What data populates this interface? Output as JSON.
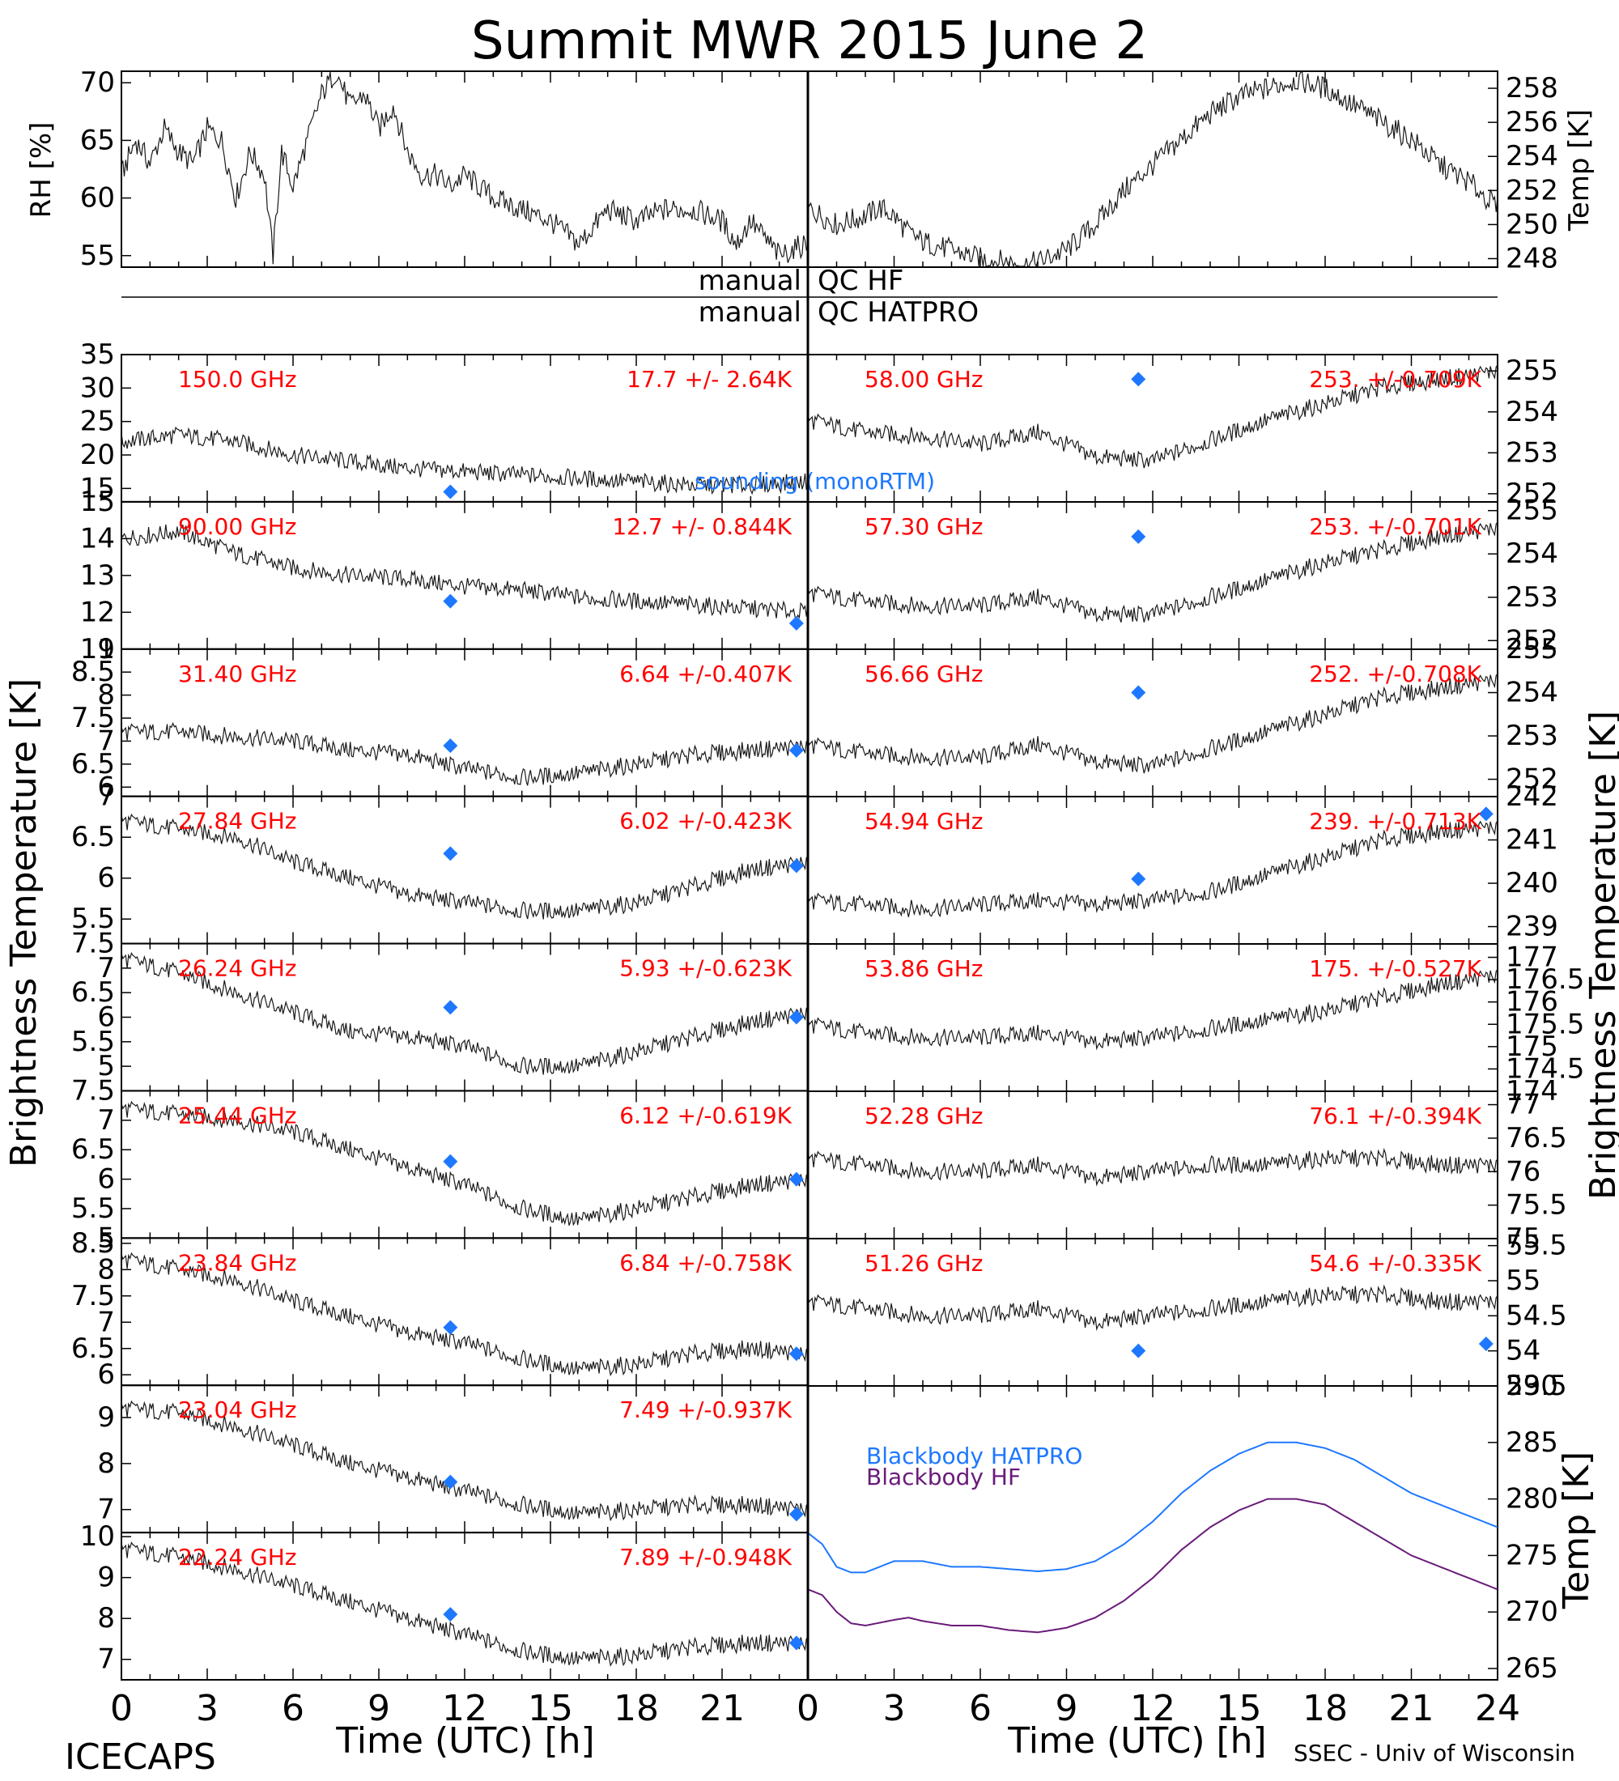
{
  "title": "Summit MWR 2015 June  2",
  "footer_left": "ICECAPS",
  "footer_right": "SSEC - Univ of Wisconsin",
  "x_axis_label": "Time (UTC) [h]",
  "x_ticks": [
    "0",
    "3",
    "6",
    "9",
    "12",
    "15",
    "18",
    "21"
  ],
  "x_ticks_right": [
    "0",
    "3",
    "6",
    "9",
    "12",
    "15",
    "18",
    "21",
    "24"
  ],
  "left_axis_label": "Brightness Temperature [K]",
  "right_axis_label": "Brightness Temperature [K]",
  "qc_labels": {
    "hf_left": "manual",
    "hf_right": "QC HF",
    "hatpro_left": "manual",
    "hatpro_right": "QC HATPRO"
  },
  "colors": {
    "label_red": "#ff0000",
    "sounding_blue": "#1e78ff",
    "hatpro_line": "#1e78ff",
    "hf_line": "#6a1b7a",
    "data_black": "#000000"
  },
  "chart_data": [
    {
      "id": "rh",
      "type": "line",
      "ylabel": "RH [%]",
      "ylim": [
        54,
        71
      ],
      "yticks": [
        55,
        60,
        65,
        70
      ],
      "x": [
        0,
        0.5,
        1,
        1.5,
        2,
        2.5,
        3,
        3.5,
        4,
        4.5,
        5,
        5.3,
        5.6,
        6,
        6.5,
        7,
        7.5,
        8,
        8.5,
        9,
        9.5,
        10,
        10.5,
        11,
        11.5,
        12,
        13,
        14,
        15,
        15.5,
        16,
        17,
        18,
        19,
        20,
        21,
        21.5,
        22,
        23,
        23.9
      ],
      "values": [
        62,
        65,
        63,
        66,
        64,
        63,
        66,
        65,
        60,
        64,
        62,
        55,
        64,
        61,
        65,
        69,
        71,
        68,
        69,
        66,
        68,
        64,
        62,
        62,
        61,
        62,
        60,
        59,
        58,
        57,
        56,
        59,
        58,
        59,
        59,
        58,
        56,
        58,
        55,
        56
      ]
    },
    {
      "id": "temp",
      "type": "line",
      "ylabel": "Temp [K]",
      "ylim": [
        247.5,
        259
      ],
      "yticks": [
        248,
        250,
        252,
        254,
        256,
        258
      ],
      "x": [
        0,
        1,
        2,
        2.5,
        3,
        3.5,
        4,
        5,
        6,
        7,
        7.5,
        8,
        9,
        10,
        11,
        12,
        13,
        14,
        15,
        16,
        17,
        18,
        19,
        20,
        21,
        22,
        23,
        24
      ],
      "values": [
        251,
        250,
        250.5,
        251,
        250.5,
        249.5,
        249,
        248.5,
        248,
        247.8,
        247.6,
        247.8,
        248.5,
        250,
        252,
        253.5,
        255,
        256.5,
        257.5,
        258,
        258.5,
        258,
        257,
        256,
        255,
        253.5,
        252.5,
        251
      ]
    },
    {
      "id": "ch150",
      "type": "line",
      "side": "left",
      "freq_label": "150.0 GHz",
      "stat_label": "17.7 +/-  2.64K",
      "extra_label": "sounding (monoRTM)",
      "ylim": [
        13,
        35
      ],
      "yticks": [
        15,
        20,
        25,
        30,
        35
      ],
      "x": [
        0,
        2,
        4,
        6,
        8,
        10,
        12,
        14,
        16,
        18,
        20,
        22,
        24
      ],
      "values": [
        22,
        23,
        22,
        20,
        19,
        18,
        17.5,
        17,
        16.5,
        16,
        15.5,
        15.5,
        16
      ],
      "sounding": [
        {
          "x": 11.5,
          "y": 14.5
        }
      ]
    },
    {
      "id": "ch90",
      "type": "line",
      "side": "left",
      "freq_label": "90.00 GHz",
      "stat_label": "12.7 +/- 0.844K",
      "ylim": [
        11,
        15
      ],
      "yticks": [
        11,
        12,
        13,
        14,
        15
      ],
      "x": [
        0,
        2,
        4,
        6,
        8,
        10,
        12,
        14,
        16,
        18,
        20,
        22,
        24
      ],
      "values": [
        14,
        14.2,
        13.6,
        13.2,
        13,
        12.9,
        12.7,
        12.6,
        12.4,
        12.3,
        12.2,
        12.1,
        12.0
      ],
      "sounding": [
        {
          "x": 11.5,
          "y": 12.3
        },
        {
          "x": 23.6,
          "y": 11.7
        }
      ]
    },
    {
      "id": "ch3140",
      "type": "line",
      "side": "left",
      "freq_label": "31.40 GHz",
      "stat_label": "6.64 +/-0.407K",
      "ylim": [
        5.8,
        9.0
      ],
      "yticks": [
        6.0,
        6.5,
        7.0,
        7.5,
        8.0,
        8.5,
        9.0
      ],
      "x": [
        0,
        2,
        4,
        6,
        8,
        10,
        12,
        14,
        16,
        18,
        20,
        22,
        24
      ],
      "values": [
        7.2,
        7.2,
        7.1,
        7.0,
        6.8,
        6.7,
        6.4,
        6.2,
        6.3,
        6.5,
        6.7,
        6.8,
        6.9
      ],
      "sounding": [
        {
          "x": 11.5,
          "y": 6.9
        },
        {
          "x": 23.6,
          "y": 6.8
        }
      ]
    },
    {
      "id": "ch2784",
      "type": "line",
      "side": "left",
      "freq_label": "27.84 GHz",
      "stat_label": "6.02 +/-0.423K",
      "ylim": [
        5.2,
        7.0
      ],
      "yticks": [
        5.5,
        6.0,
        6.5,
        7.0
      ],
      "x": [
        0,
        2,
        4,
        6,
        8,
        10,
        12,
        14,
        16,
        18,
        20,
        22,
        24
      ],
      "values": [
        6.7,
        6.6,
        6.5,
        6.2,
        6.0,
        5.8,
        5.7,
        5.6,
        5.6,
        5.7,
        5.9,
        6.1,
        6.2
      ],
      "sounding": [
        {
          "x": 11.5,
          "y": 6.3
        },
        {
          "x": 23.6,
          "y": 6.15
        }
      ]
    },
    {
      "id": "ch2624",
      "type": "line",
      "side": "left",
      "freq_label": "26.24 GHz",
      "stat_label": "5.93 +/-0.623K",
      "ylim": [
        4.5,
        7.5
      ],
      "yticks": [
        5.0,
        5.5,
        6.0,
        6.5,
        7.0,
        7.5
      ],
      "x": [
        0,
        2,
        4,
        6,
        8,
        10,
        12,
        14,
        16,
        18,
        20,
        22,
        24
      ],
      "values": [
        7.2,
        6.9,
        6.5,
        6.1,
        5.7,
        5.6,
        5.4,
        5.0,
        5.0,
        5.3,
        5.6,
        5.9,
        6.1
      ],
      "sounding": [
        {
          "x": 11.5,
          "y": 6.2
        },
        {
          "x": 23.6,
          "y": 6.0
        }
      ]
    },
    {
      "id": "ch2544",
      "type": "line",
      "side": "left",
      "freq_label": "25.44 GHz",
      "stat_label": "6.12 +/-0.619K",
      "ylim": [
        5.0,
        7.5
      ],
      "yticks": [
        5.0,
        5.5,
        6.0,
        6.5,
        7.0,
        7.5
      ],
      "x": [
        0,
        2,
        4,
        6,
        8,
        10,
        12,
        14,
        16,
        18,
        20,
        22,
        24
      ],
      "values": [
        7.2,
        7.1,
        7.0,
        6.8,
        6.5,
        6.2,
        5.9,
        5.5,
        5.3,
        5.5,
        5.7,
        5.9,
        6.0
      ],
      "sounding": [
        {
          "x": 11.5,
          "y": 6.3
        },
        {
          "x": 23.6,
          "y": 6.0
        }
      ]
    },
    {
      "id": "ch2384",
      "type": "line",
      "side": "left",
      "freq_label": "23.84 GHz",
      "stat_label": "6.84 +/-0.758K",
      "ylim": [
        5.8,
        8.6
      ],
      "yticks": [
        6.0,
        6.5,
        7.0,
        7.5,
        8.0,
        8.5
      ],
      "x": [
        0,
        2,
        4,
        6,
        8,
        10,
        12,
        14,
        16,
        18,
        20,
        22,
        24
      ],
      "values": [
        8.2,
        8.0,
        7.8,
        7.4,
        7.1,
        6.8,
        6.6,
        6.3,
        6.1,
        6.2,
        6.4,
        6.5,
        6.4
      ],
      "sounding": [
        {
          "x": 11.5,
          "y": 6.9
        },
        {
          "x": 23.6,
          "y": 6.4
        }
      ]
    },
    {
      "id": "ch2304",
      "type": "line",
      "side": "left",
      "freq_label": "23.04 GHz",
      "stat_label": "7.49 +/-0.937K",
      "ylim": [
        6.5,
        9.7
      ],
      "yticks": [
        7,
        8,
        9
      ],
      "x": [
        0,
        2,
        4,
        6,
        8,
        10,
        12,
        14,
        16,
        18,
        20,
        22,
        24
      ],
      "values": [
        9.2,
        9.1,
        8.8,
        8.4,
        8.0,
        7.7,
        7.4,
        7.1,
        6.9,
        7.0,
        7.1,
        7.1,
        7.0
      ],
      "sounding": [
        {
          "x": 11.5,
          "y": 7.6
        },
        {
          "x": 23.6,
          "y": 6.9
        }
      ]
    },
    {
      "id": "ch2224",
      "type": "line",
      "side": "left",
      "freq_label": "22.24 GHz",
      "stat_label": "7.89 +/-0.948K",
      "ylim": [
        6.5,
        10.1
      ],
      "yticks": [
        7,
        8,
        9,
        10
      ],
      "x": [
        0,
        2,
        4,
        6,
        8,
        10,
        12,
        14,
        16,
        18,
        20,
        22,
        24
      ],
      "values": [
        9.7,
        9.5,
        9.2,
        8.8,
        8.4,
        8.0,
        7.6,
        7.2,
        7.0,
        7.1,
        7.3,
        7.4,
        7.4
      ],
      "sounding": [
        {
          "x": 11.5,
          "y": 8.1
        },
        {
          "x": 23.6,
          "y": 7.4
        }
      ]
    },
    {
      "id": "ch5800",
      "type": "line",
      "side": "right",
      "freq_label": "58.00 GHz",
      "stat_label": "253. +/-0.709K",
      "ylim": [
        251.8,
        255.4
      ],
      "yticks": [
        252,
        253,
        254,
        255
      ],
      "x": [
        0,
        2,
        4,
        6,
        8,
        10,
        12,
        14,
        16,
        18,
        20,
        22,
        24
      ],
      "values": [
        253.8,
        253.5,
        253.4,
        253.2,
        253.5,
        252.9,
        252.8,
        253.3,
        253.8,
        254.2,
        254.6,
        254.8,
        255.0
      ],
      "sounding": [
        {
          "x": 11.5,
          "y": 254.8
        }
      ]
    },
    {
      "id": "ch5730",
      "type": "line",
      "side": "right",
      "freq_label": "57.30 GHz",
      "stat_label": "253. +/-0.701K",
      "ylim": [
        251.8,
        255.2
      ],
      "yticks": [
        252,
        253,
        254,
        255
      ],
      "x": [
        0,
        2,
        4,
        6,
        8,
        10,
        12,
        14,
        16,
        18,
        20,
        22,
        24
      ],
      "values": [
        253.1,
        252.9,
        252.8,
        252.8,
        253.0,
        252.6,
        252.6,
        253.0,
        253.4,
        253.8,
        254.1,
        254.4,
        254.6
      ],
      "sounding": [
        {
          "x": 11.5,
          "y": 254.4
        }
      ]
    },
    {
      "id": "ch5666",
      "type": "line",
      "side": "right",
      "freq_label": "56.66 GHz",
      "stat_label": "252. +/-0.708K",
      "ylim": [
        251.6,
        255.0
      ],
      "yticks": [
        252,
        253,
        254,
        255
      ],
      "x": [
        0,
        2,
        4,
        6,
        8,
        10,
        12,
        14,
        16,
        18,
        20,
        22,
        24
      ],
      "values": [
        252.8,
        252.6,
        252.5,
        252.5,
        252.8,
        252.4,
        252.3,
        252.7,
        253.1,
        253.5,
        253.9,
        254.1,
        254.3
      ],
      "sounding": [
        {
          "x": 11.5,
          "y": 254.0
        }
      ]
    },
    {
      "id": "ch5494",
      "type": "line",
      "side": "right",
      "freq_label": "54.94 GHz",
      "stat_label": "239. +/-0.713K",
      "ylim": [
        238.6,
        242.0
      ],
      "yticks": [
        239,
        240,
        241,
        242
      ],
      "x": [
        0,
        2,
        4,
        6,
        8,
        10,
        12,
        14,
        16,
        18,
        20,
        22,
        24
      ],
      "values": [
        239.6,
        239.5,
        239.4,
        239.5,
        239.6,
        239.5,
        239.6,
        239.8,
        240.2,
        240.6,
        241.0,
        241.2,
        241.3
      ],
      "sounding": [
        {
          "x": 11.5,
          "y": 240.1
        },
        {
          "x": 23.6,
          "y": 241.6
        }
      ]
    },
    {
      "id": "ch5386",
      "type": "line",
      "side": "right",
      "freq_label": "53.86 GHz",
      "stat_label": "175. +/-0.527K",
      "ylim": [
        174.0,
        177.3
      ],
      "yticks": [
        174.0,
        174.5,
        175.0,
        175.5,
        176.0,
        176.5,
        177.0
      ],
      "x": [
        0,
        2,
        4,
        6,
        8,
        10,
        12,
        14,
        16,
        18,
        20,
        22,
        24
      ],
      "values": [
        175.5,
        175.3,
        175.2,
        175.2,
        175.3,
        175.1,
        175.2,
        175.4,
        175.6,
        175.8,
        176.1,
        176.4,
        176.6
      ],
      "sounding": []
    },
    {
      "id": "ch5228",
      "type": "line",
      "side": "right",
      "freq_label": "52.28 GHz",
      "stat_label": "76.1 +/-0.394K",
      "ylim": [
        75.0,
        77.2
      ],
      "yticks": [
        75.0,
        75.5,
        76.0,
        76.5,
        77.0
      ],
      "x": [
        0,
        2,
        4,
        6,
        8,
        10,
        12,
        14,
        16,
        18,
        20,
        22,
        24
      ],
      "values": [
        76.2,
        76.1,
        76.0,
        76.0,
        76.1,
        75.9,
        76.0,
        76.1,
        76.1,
        76.2,
        76.2,
        76.1,
        76.1
      ],
      "sounding": []
    },
    {
      "id": "ch5126",
      "type": "line",
      "side": "right",
      "freq_label": "51.26 GHz",
      "stat_label": "54.6 +/-0.335K",
      "ylim": [
        53.5,
        55.6
      ],
      "yticks": [
        53.5,
        54.0,
        54.5,
        55.0,
        55.5
      ],
      "x": [
        0,
        2,
        4,
        6,
        8,
        10,
        12,
        14,
        16,
        18,
        20,
        22,
        24
      ],
      "values": [
        54.7,
        54.6,
        54.5,
        54.5,
        54.6,
        54.4,
        54.5,
        54.6,
        54.7,
        54.8,
        54.8,
        54.7,
        54.7
      ],
      "sounding": [
        {
          "x": 11.5,
          "y": 54.0
        },
        {
          "x": 23.6,
          "y": 54.1
        }
      ]
    },
    {
      "id": "blackbody",
      "type": "line",
      "side": "right",
      "ylabel": "Temp [K]",
      "ylim": [
        264,
        290
      ],
      "yticks": [
        265,
        270,
        275,
        280,
        285,
        290
      ],
      "series": [
        {
          "name": "Blackbody HATPRO",
          "x": [
            0,
            0.5,
            1,
            1.5,
            2,
            3,
            3.5,
            4,
            5,
            6,
            7,
            8,
            9,
            10,
            11,
            12,
            13,
            14,
            15,
            16,
            17,
            18,
            19,
            20,
            21,
            22,
            23,
            24
          ],
          "values": [
            277,
            276,
            274,
            273.5,
            273.5,
            274.5,
            274.5,
            274.5,
            274,
            274,
            273.8,
            273.6,
            273.8,
            274.5,
            276,
            278,
            280.5,
            282.5,
            284,
            285,
            285,
            284.5,
            283.5,
            282,
            280.5,
            279.5,
            278.5,
            277.5
          ]
        },
        {
          "name": "Blackbody HF",
          "x": [
            0,
            0.5,
            1,
            1.5,
            2,
            3,
            3.5,
            4,
            5,
            6,
            7,
            8,
            9,
            10,
            11,
            12,
            13,
            14,
            15,
            16,
            17,
            18,
            19,
            20,
            21,
            22,
            23,
            24
          ],
          "values": [
            272,
            271.5,
            270,
            269,
            268.8,
            269.3,
            269.5,
            269.2,
            268.8,
            268.8,
            268.4,
            268.2,
            268.6,
            269.5,
            271,
            273,
            275.5,
            277.5,
            279,
            280,
            280,
            279.5,
            278,
            276.5,
            275,
            274,
            273,
            272
          ]
        }
      ]
    }
  ]
}
